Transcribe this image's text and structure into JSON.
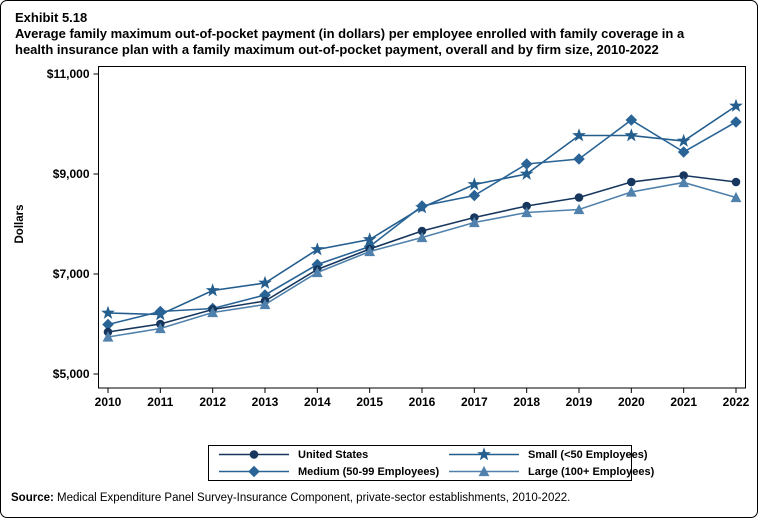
{
  "figure": {
    "exhibit_label": "Exhibit 5.18",
    "title_line1": "Average family maximum out-of-pocket payment (in dollars) per employee enrolled with family coverage in a",
    "title_line2": "health insurance plan with a family maximum out-of-pocket payment, overall and by firm size, 2010-2022"
  },
  "chart_data": {
    "type": "line",
    "title": "Average family maximum out-of-pocket payment (in dollars) per employee enrolled with family coverage in a health insurance plan with a family maximum out-of-pocket payment, overall and by firm size, 2010-2022",
    "xlabel": "",
    "ylabel": "Dollars",
    "x": [
      2010,
      2011,
      2012,
      2013,
      2014,
      2015,
      2016,
      2017,
      2018,
      2019,
      2020,
      2021,
      2022
    ],
    "ylim": [
      5000,
      11000
    ],
    "grid": false,
    "yticks": {
      "values": [
        5000,
        7000,
        9000,
        11000
      ],
      "labels": [
        "$5,000",
        "$7,000",
        "$9,000",
        "$11,000"
      ]
    },
    "series": [
      {
        "name": "Small (<50 Employees)",
        "marker": "star",
        "color": "#245E8E",
        "values": [
          6220,
          6190,
          6670,
          6820,
          7490,
          7690,
          8330,
          8790,
          9000,
          9770,
          9770,
          9660,
          10360
        ]
      },
      {
        "name": "Medium (50-99 Employees)",
        "marker": "diamond",
        "color": "#2A6496",
        "values": [
          5990,
          6250,
          6310,
          6580,
          7190,
          7550,
          8360,
          8570,
          9200,
          9300,
          10080,
          9440,
          10040
        ]
      },
      {
        "name": "United States",
        "marker": "circle",
        "color": "#17375E",
        "values": [
          5840,
          6000,
          6290,
          6460,
          7090,
          7500,
          7860,
          8130,
          8360,
          8530,
          8840,
          8970,
          8840
        ]
      },
      {
        "name": "Large (100+ Employees)",
        "marker": "triangle",
        "color": "#5081AC",
        "values": [
          5740,
          5910,
          6230,
          6390,
          7030,
          7450,
          7730,
          8030,
          8230,
          8290,
          8640,
          8830,
          8530
        ]
      }
    ],
    "legend": {
      "position": "bottom",
      "order": [
        "United States",
        "Small (<50 Employees)",
        "Medium (50-99 Employees)",
        "Large (100+ Employees)"
      ]
    }
  },
  "source": {
    "label": "Source:",
    "text": " Medical Expenditure Panel Survey-Insurance Component, private-sector establishments, 2010-2022."
  }
}
